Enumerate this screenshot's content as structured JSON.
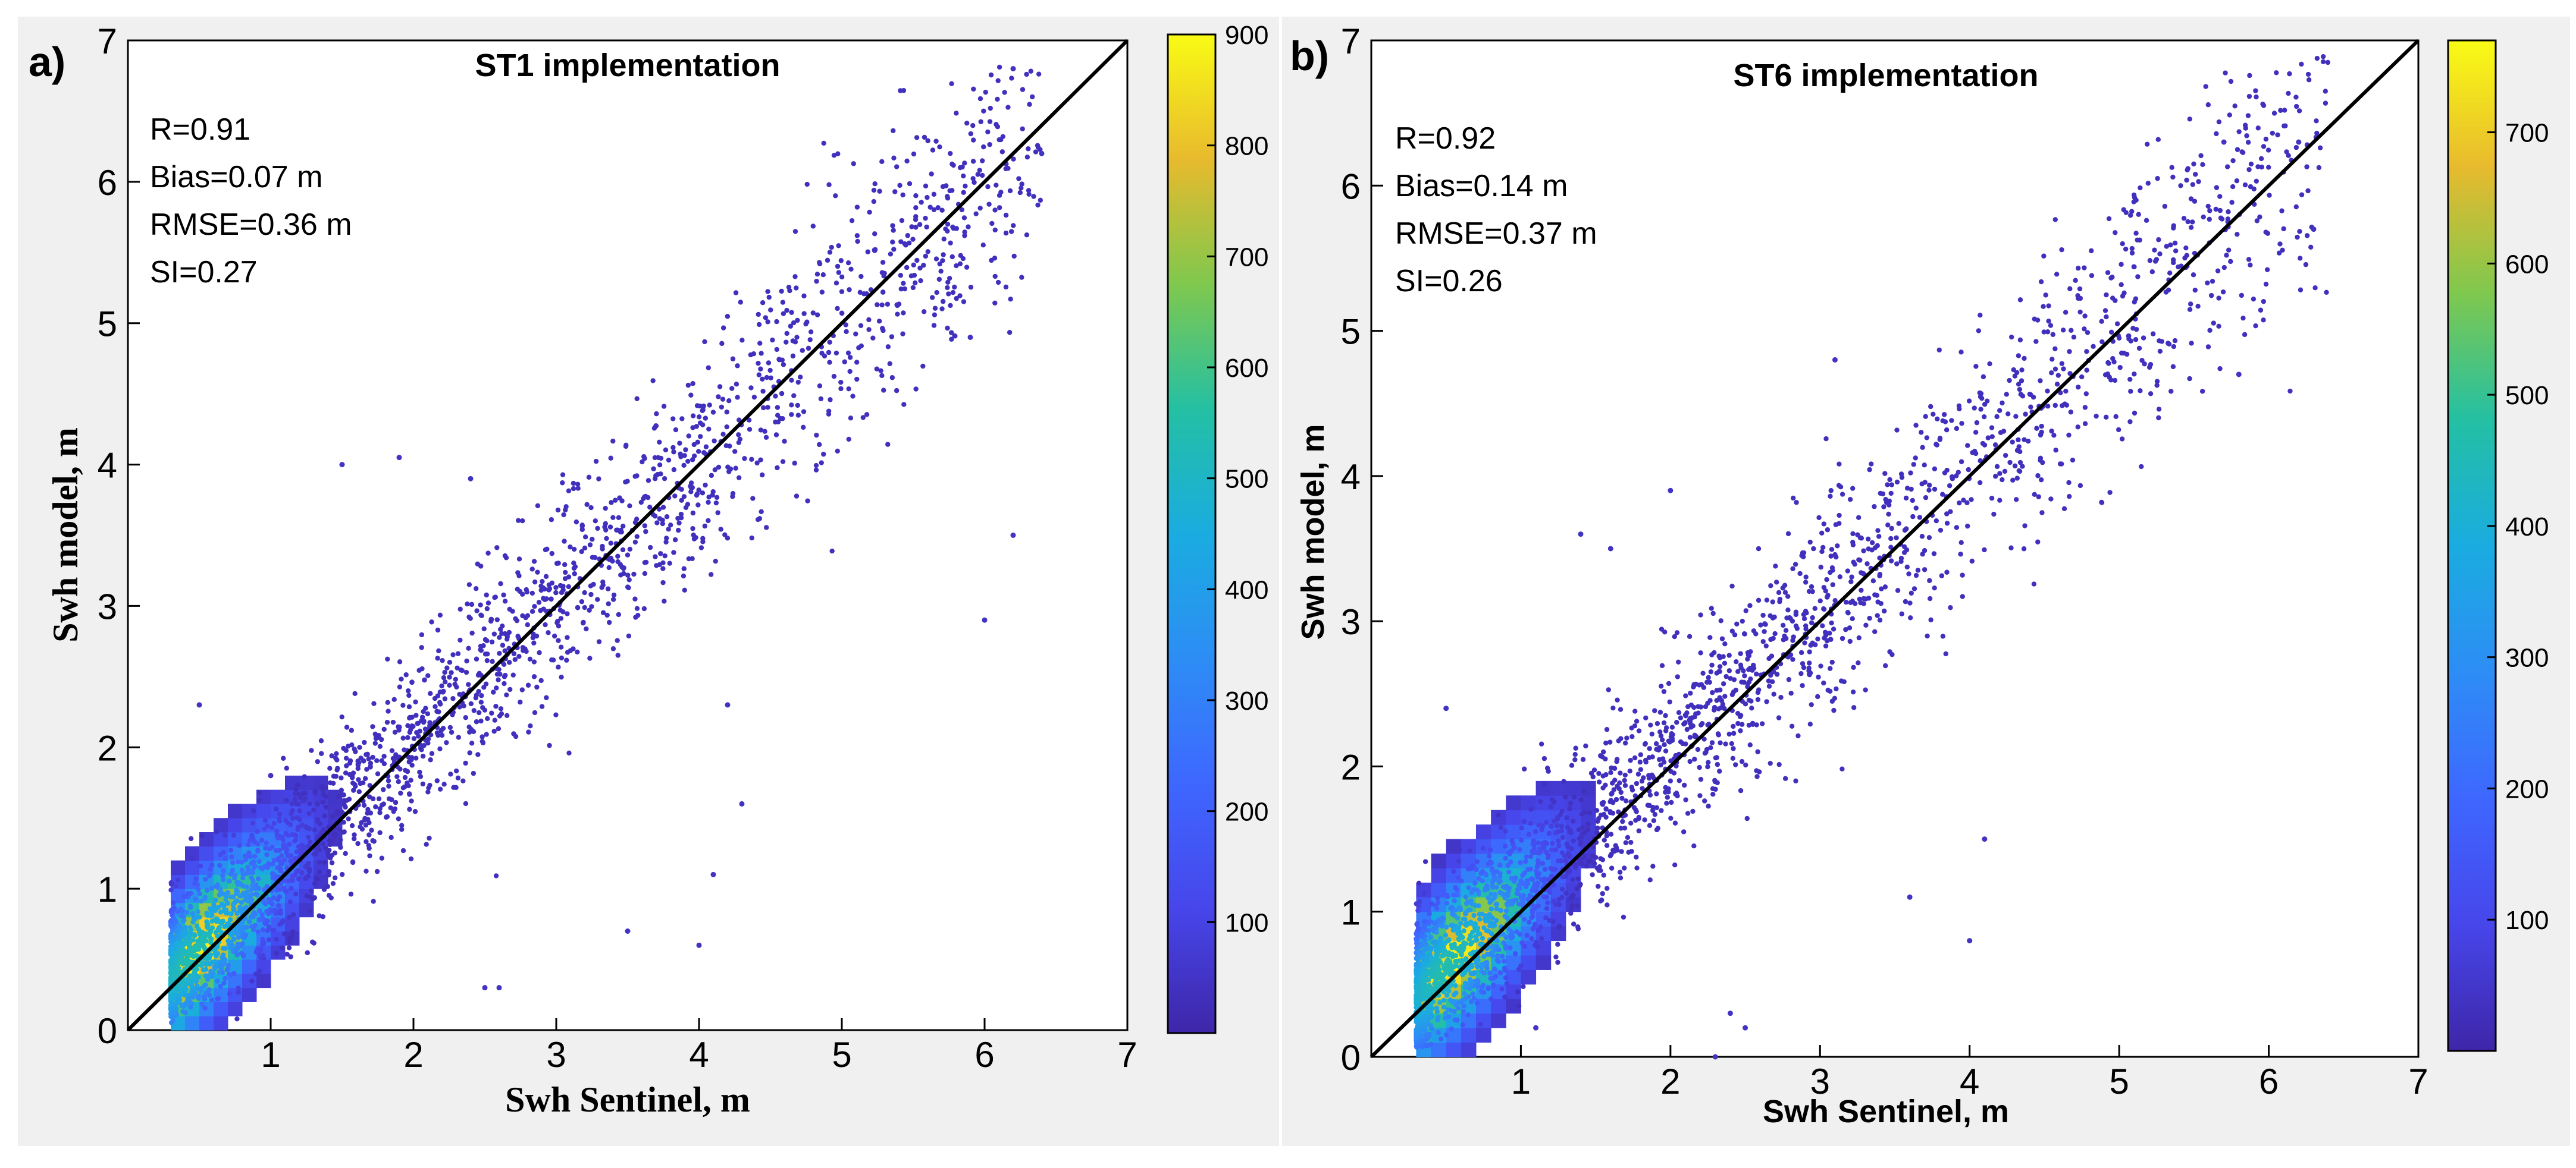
{
  "figure": {
    "description_labels": [
      "a)",
      "b)"
    ]
  },
  "chart_data": [
    {
      "type": "scatter",
      "panel_label": "a)",
      "title": "ST1 implementation",
      "xlabel": "Swh Sentinel, m",
      "ylabel": "Swh model, m",
      "xlim": [
        0,
        7
      ],
      "ylim": [
        0,
        7
      ],
      "xticks": [
        "1",
        "2",
        "3",
        "4",
        "5",
        "6",
        "7"
      ],
      "yticks": [
        "0",
        "1",
        "2",
        "3",
        "4",
        "5",
        "6",
        "7"
      ],
      "stats": [
        "R=0.91",
        "Bias=0.07 m",
        "RMSE=0.36 m",
        "SI=0.27"
      ],
      "one_to_one_line": true,
      "color_density_max": 900,
      "colorbar": {
        "range": [
          0,
          900
        ],
        "ticks": [
          "100",
          "200",
          "300",
          "400",
          "500",
          "600",
          "700",
          "800",
          "900"
        ],
        "tick_values": [
          100,
          200,
          300,
          400,
          500,
          600,
          700,
          800,
          900
        ],
        "colormap": "parula"
      },
      "point_cloud": {
        "x_range": [
          0.3,
          6.4
        ],
        "slope": 0.98,
        "intercept": 0.08,
        "rmse": 0.36,
        "peak_density_at": [
          0.45,
          0.5
        ],
        "outliers": [
          [
            2.4,
            3.9
          ],
          [
            1.5,
            4.0
          ],
          [
            1.9,
            4.05
          ],
          [
            6.2,
            6.8
          ],
          [
            6.2,
            3.5
          ],
          [
            6.0,
            2.9
          ],
          [
            4.2,
            2.3
          ],
          [
            4.1,
            1.1
          ],
          [
            4.0,
            0.6
          ],
          [
            3.5,
            0.7
          ],
          [
            2.6,
            0.3
          ],
          [
            2.5,
            0.3
          ],
          [
            1.0,
            1.8
          ],
          [
            0.5,
            2.3
          ],
          [
            4.3,
            1.6
          ],
          [
            5.9,
            4.9
          ],
          [
            6.4,
            6.2
          ]
        ]
      }
    },
    {
      "type": "scatter",
      "panel_label": "b)",
      "title": "ST6 implementation",
      "xlabel": "Swh Sentinel, m",
      "ylabel": "Swh model, m",
      "xlim": [
        0,
        7
      ],
      "ylim": [
        0,
        7
      ],
      "xticks": [
        "1",
        "2",
        "3",
        "4",
        "5",
        "6",
        "7"
      ],
      "yticks": [
        "0",
        "1",
        "2",
        "3",
        "4",
        "5",
        "6",
        "7"
      ],
      "stats": [
        "R=0.92",
        "Bias=0.14 m",
        "RMSE=0.37 m",
        "SI=0.26"
      ],
      "one_to_one_line": true,
      "color_density_max": 770,
      "colorbar": {
        "range": [
          0,
          770
        ],
        "ticks": [
          "100",
          "200",
          "300",
          "400",
          "500",
          "600",
          "700"
        ],
        "tick_values": [
          100,
          200,
          300,
          400,
          500,
          600,
          700
        ],
        "colormap": "parula"
      },
      "point_cloud": {
        "x_range": [
          0.3,
          6.4
        ],
        "slope": 0.99,
        "intercept": 0.12,
        "rmse": 0.37,
        "peak_density_at": [
          0.5,
          0.6
        ],
        "outliers": [
          [
            1.4,
            3.6
          ],
          [
            2.0,
            3.9
          ],
          [
            1.6,
            3.5
          ],
          [
            4.1,
            1.5
          ],
          [
            4.0,
            0.8
          ],
          [
            3.6,
            1.1
          ],
          [
            2.4,
            0.3
          ],
          [
            2.5,
            0.2
          ],
          [
            1.1,
            0.2
          ],
          [
            2.3,
            0.0
          ],
          [
            0.5,
            2.4
          ],
          [
            5.8,
            4.7
          ],
          [
            6.3,
            5.7
          ],
          [
            6.2,
            6.3
          ],
          [
            5.7,
            6.3
          ],
          [
            3.1,
            4.8
          ]
        ]
      }
    }
  ]
}
